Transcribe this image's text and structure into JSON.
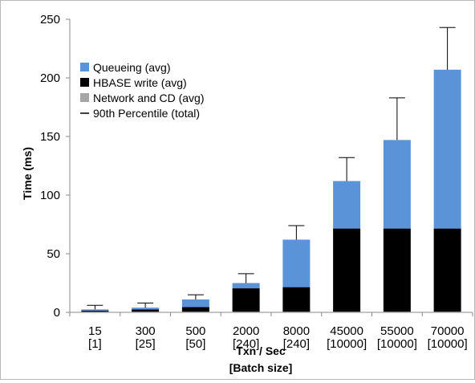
{
  "chart_data": {
    "type": "bar",
    "stacked": true,
    "categories": [
      "15",
      "300",
      "500",
      "2000",
      "8000",
      "45000",
      "55000",
      "70000"
    ],
    "batch_sizes": [
      "[1]",
      "[25]",
      "[50]",
      "[240]",
      "[240]",
      "[10000]",
      "[10000]",
      "[10000]"
    ],
    "series": [
      {
        "name": "Network and CD (avg)",
        "color": "#a6a6a6",
        "values": [
          0.5,
          0.5,
          0.5,
          0.5,
          0.5,
          0.5,
          0.5,
          0.5
        ]
      },
      {
        "name": "HBASE write (avg)",
        "color": "#000000",
        "values": [
          1,
          2,
          4,
          20,
          21,
          71,
          71,
          71
        ]
      },
      {
        "name": "Queueing (avg)",
        "color": "#5b93d8",
        "values": [
          1,
          1.5,
          6.5,
          4.5,
          40.5,
          40.5,
          75.5,
          135.5
        ]
      }
    ],
    "error_bar": {
      "name": "90th Percentile (total)",
      "values": [
        6,
        8,
        15,
        33,
        74,
        132,
        183,
        243
      ]
    },
    "legend_order": [
      "Queueing (avg)",
      "HBASE write (avg)",
      "Network and CD (avg)",
      "90th Percentile (total)"
    ],
    "ylabel": "Time (ms)",
    "xlabel_line1": "Txn / Sec",
    "xlabel_line2": "[Batch size]",
    "ylim": [
      0,
      250
    ],
    "yticks": [
      0,
      50,
      100,
      150,
      200,
      250
    ],
    "grid": false,
    "legend_position": "top-left"
  }
}
